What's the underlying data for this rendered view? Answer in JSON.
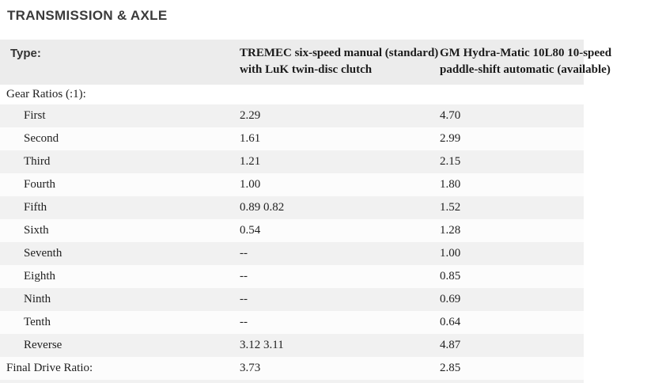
{
  "page_title": "TRANSMISSION & AXLE",
  "table": {
    "type_label": "Type:",
    "section_label": "Gear Ratios (:1):",
    "columns": [
      {
        "name": "manual",
        "line1": "TREMEC six-speed manual (standard)",
        "line2": "with LuK twin-disc clutch"
      },
      {
        "name": "automatic",
        "line1": "GM Hydra-Matic 10L80 10-speed",
        "line2": "paddle-shift automatic (available)"
      }
    ],
    "rows": [
      {
        "label": "First",
        "manual": "2.29",
        "automatic": "4.70",
        "indent": true
      },
      {
        "label": "Second",
        "manual": "1.61",
        "automatic": "2.99",
        "indent": true
      },
      {
        "label": "Third",
        "manual": "1.21",
        "automatic": "2.15",
        "indent": true
      },
      {
        "label": "Fourth",
        "manual": "1.00",
        "automatic": "1.80",
        "indent": true
      },
      {
        "label": "Fifth",
        "manual": "0.89 0.82",
        "automatic": "1.52",
        "indent": true
      },
      {
        "label": "Sixth",
        "manual": "0.54",
        "automatic": "1.28",
        "indent": true
      },
      {
        "label": "Seventh",
        "manual": "--",
        "automatic": "1.00",
        "indent": true
      },
      {
        "label": "Eighth",
        "manual": "--",
        "automatic": "0.85",
        "indent": true
      },
      {
        "label": "Ninth",
        "manual": "--",
        "automatic": "0.69",
        "indent": true
      },
      {
        "label": "Tenth",
        "manual": "--",
        "automatic": "0.64",
        "indent": true
      },
      {
        "label": "Reverse",
        "manual": "3.12 3.11",
        "automatic": "4.87",
        "indent": true
      },
      {
        "label": "Final Drive Ratio:",
        "manual": "3.73",
        "automatic": "2.85",
        "indent": false
      }
    ]
  },
  "colors": {
    "header_row_bg": "#ececec",
    "stripe_bg": "#f1f1f1",
    "row_bg": "#fcfcfc",
    "title_text": "#3b3b3b",
    "body_text": "#212121",
    "header_text": "#1b1b1b"
  }
}
